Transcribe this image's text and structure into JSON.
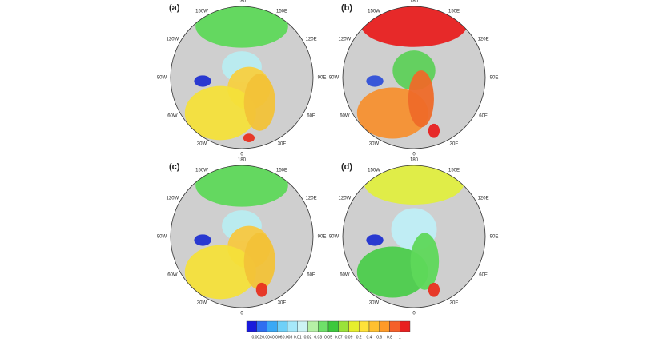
{
  "panels": [
    {
      "label": "(a)"
    },
    {
      "label": "(b)"
    },
    {
      "label": "(c)"
    },
    {
      "label": "(d)"
    }
  ],
  "longitude_labels": [
    "180",
    "150E",
    "120E",
    "90E",
    "60E",
    "30E",
    "0",
    "30W",
    "60W",
    "90W",
    "120W",
    "150W"
  ],
  "colorbar": {
    "labels": [
      "0.002",
      "0.004",
      "0.006",
      "0.008",
      "0.01",
      "0.02",
      "0.03",
      "0.05",
      "0.07",
      "0.09",
      "0.2",
      "0.4",
      "0.6",
      "0.8",
      "1"
    ],
    "colors": [
      "#1a1adc",
      "#2f6ef0",
      "#3aa8f5",
      "#6fd0f8",
      "#a6e8fa",
      "#cdf3f5",
      "#b6f0a6",
      "#6fe06a",
      "#3cc83c",
      "#9ae23a",
      "#e6ee2e",
      "#ffe23a",
      "#ffc030",
      "#ff9a28",
      "#f5602a",
      "#e82020"
    ]
  }
}
